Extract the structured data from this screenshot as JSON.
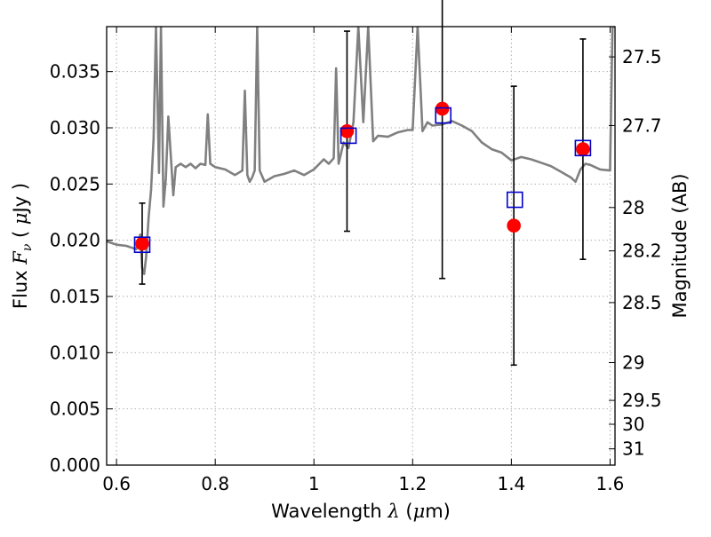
{
  "chart_data": {
    "type": "scatter",
    "title": "",
    "xlabel": "Wavelength  λ (μm)",
    "ylabel": "Flux  Fν  ( μJy )",
    "y2label": "Magnitude (AB)",
    "xlim": [
      0.58,
      1.61
    ],
    "ylim": [
      0.0,
      0.039
    ],
    "grid": true,
    "x_ticks": [
      0.6,
      0.8,
      1.0,
      1.2,
      1.4,
      1.6
    ],
    "x_tick_labels": [
      "0.6",
      "0.8",
      "1",
      "1.2",
      "1.4",
      "1.6"
    ],
    "y_ticks": [
      0.0,
      0.005,
      0.01,
      0.015,
      0.02,
      0.025,
      0.03,
      0.035
    ],
    "y_tick_labels": [
      "0.000",
      "0.005",
      "0.010",
      "0.015",
      "0.020",
      "0.025",
      "0.030",
      "0.035"
    ],
    "y2_ticks": [
      27.5,
      27.7,
      28,
      28.2,
      28.5,
      29,
      29.5,
      30,
      31
    ],
    "y2_tick_labels": [
      "27.5",
      "27.7",
      "28",
      "28.2",
      "28.5",
      "29",
      "29.5",
      "30",
      "31"
    ],
    "colors": {
      "spectrum": "#808080",
      "observed": "#ff0000",
      "model": "#0000cc",
      "errorbar": "#000000",
      "grid": "#b0b0b0"
    },
    "series": [
      {
        "kind": "spectrum",
        "x": [
          0.58,
          0.6,
          0.62,
          0.64,
          0.648,
          0.652,
          0.656,
          0.66,
          0.665,
          0.67,
          0.675,
          0.68,
          0.686,
          0.69,
          0.695,
          0.7,
          0.705,
          0.71,
          0.715,
          0.72,
          0.73,
          0.74,
          0.75,
          0.76,
          0.77,
          0.78,
          0.785,
          0.79,
          0.8,
          0.82,
          0.84,
          0.855,
          0.86,
          0.865,
          0.87,
          0.875,
          0.88,
          0.885,
          0.89,
          0.9,
          0.92,
          0.94,
          0.96,
          0.98,
          1.0,
          1.02,
          1.03,
          1.04,
          1.045,
          1.05,
          1.06,
          1.07,
          1.08,
          1.09,
          1.1,
          1.11,
          1.12,
          1.13,
          1.15,
          1.17,
          1.19,
          1.2,
          1.21,
          1.22,
          1.23,
          1.24,
          1.26,
          1.28,
          1.3,
          1.32,
          1.34,
          1.36,
          1.38,
          1.4,
          1.42,
          1.44,
          1.46,
          1.48,
          1.5,
          1.52,
          1.53,
          1.54,
          1.55,
          1.56,
          1.58,
          1.6,
          1.605,
          1.61
        ],
        "y": [
          0.0199,
          0.0196,
          0.0195,
          0.0192,
          0.0205,
          0.0175,
          0.017,
          0.0185,
          0.022,
          0.0245,
          0.029,
          0.039,
          0.026,
          0.039,
          0.023,
          0.0255,
          0.031,
          0.0275,
          0.024,
          0.0265,
          0.0268,
          0.0265,
          0.0268,
          0.0264,
          0.0268,
          0.0267,
          0.0312,
          0.0268,
          0.0265,
          0.0263,
          0.0258,
          0.0262,
          0.0333,
          0.0258,
          0.0252,
          0.0256,
          0.0262,
          0.039,
          0.0262,
          0.0252,
          0.0257,
          0.0259,
          0.0262,
          0.0258,
          0.0263,
          0.0272,
          0.0268,
          0.0273,
          0.0353,
          0.0268,
          0.0287,
          0.0282,
          0.0305,
          0.039,
          0.0305,
          0.039,
          0.0288,
          0.0293,
          0.0292,
          0.0296,
          0.0298,
          0.0298,
          0.039,
          0.0297,
          0.0305,
          0.0302,
          0.0303,
          0.0306,
          0.0302,
          0.0297,
          0.0287,
          0.0281,
          0.0278,
          0.0271,
          0.0274,
          0.0272,
          0.0269,
          0.0266,
          0.0261,
          0.0256,
          0.0252,
          0.0263,
          0.0268,
          0.0267,
          0.0263,
          0.0262,
          0.039,
          0.039
        ]
      },
      {
        "kind": "observed",
        "x": [
          0.652,
          1.067,
          1.26,
          1.405,
          1.545
        ],
        "y": [
          0.0197,
          0.0297,
          0.0317,
          0.0213,
          0.0281
        ],
        "yerr": [
          0.0036,
          0.0089,
          0.0151,
          0.0124,
          0.0098
        ]
      },
      {
        "kind": "model",
        "x": [
          0.652,
          1.07,
          1.262,
          1.407,
          1.545
        ],
        "y": [
          0.0196,
          0.0293,
          0.0311,
          0.0236,
          0.0282
        ]
      }
    ]
  }
}
